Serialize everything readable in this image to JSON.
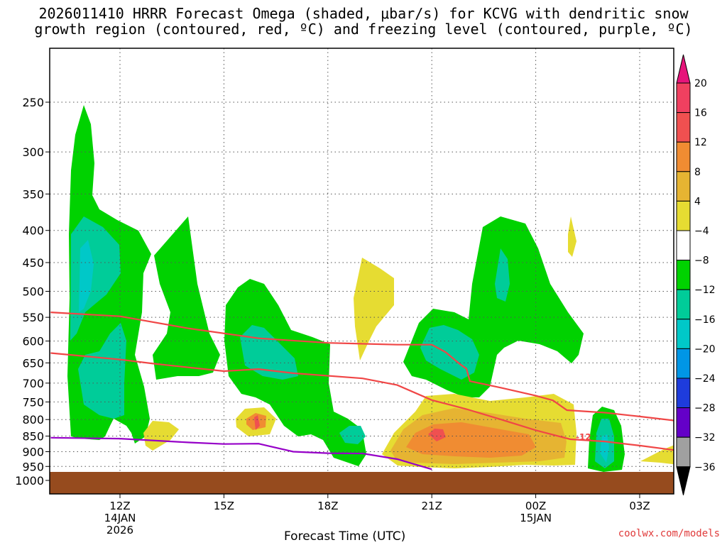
{
  "title_line1": "2026011410 HRRR Forecast Omega (shaded, μbar/s) for KCVG with dendritic snow",
  "title_line2": "growth region (contoured, red, ºC) and freezing level (contoured, purple, ºC)",
  "credit": "coolwx.com/models",
  "colors": {
    "green": "#00d200",
    "teal": "#00cc99",
    "cyan": "#00c8c8",
    "yellow": "#e6dc32",
    "gold": "#e6b432",
    "orange": "#f08c32",
    "red": "#f05050",
    "ground": "#964b1e",
    "snow_line": "#f04646",
    "freezing_line": "#9600c8"
  },
  "chart_data": {
    "type": "heatmap",
    "xlabel": "Forecast Time (UTC)",
    "ylabel": "",
    "x_range_hours": [
      10,
      28
    ],
    "y_range_hPa": [
      200,
      1000
    ],
    "y_ticks": [
      250,
      300,
      350,
      400,
      450,
      500,
      550,
      600,
      650,
      700,
      750,
      800,
      850,
      900,
      950,
      1000
    ],
    "x_ticks": [
      {
        "hour": 12,
        "label": "12Z",
        "sub1": "14JAN",
        "sub2": "2026"
      },
      {
        "hour": 15,
        "label": "15Z",
        "sub1": "",
        "sub2": ""
      },
      {
        "hour": 18,
        "label": "18Z",
        "sub1": "",
        "sub2": ""
      },
      {
        "hour": 21,
        "label": "21Z",
        "sub1": "",
        "sub2": ""
      },
      {
        "hour": 24,
        "label": "00Z",
        "sub1": "15JAN",
        "sub2": ""
      },
      {
        "hour": 27,
        "label": "03Z",
        "sub1": "",
        "sub2": ""
      }
    ],
    "grid": true,
    "colorbar": {
      "labels": [
        "20",
        "16",
        "12",
        "8",
        "4",
        "−4",
        "−8",
        "−12",
        "−16",
        "−20",
        "−24",
        "−28",
        "−32",
        "−36"
      ],
      "colors": [
        "#f04060",
        "#f05050",
        "#f08c32",
        "#e6b432",
        "#e6dc32",
        "#ffffff",
        "#00d200",
        "#00cc99",
        "#00c8c8",
        "#0096e6",
        "#1e3cdc",
        "#6400c8",
        "#a000c8",
        "#a0a0a0"
      ],
      "top_arrow_color": "#e6147a",
      "bottom_arrow_color": "#000000"
    },
    "contour_label": "-12",
    "snow_growth_upper": [
      [
        10,
        540
      ],
      [
        12,
        548
      ],
      [
        14,
        573
      ],
      [
        16,
        594
      ],
      [
        18,
        604
      ],
      [
        20,
        608
      ],
      [
        21,
        608
      ],
      [
        21.4,
        625
      ],
      [
        21.8,
        652
      ],
      [
        22.0,
        664
      ],
      [
        22.1,
        695
      ],
      [
        23,
        712
      ],
      [
        24,
        733
      ],
      [
        24.5,
        746
      ],
      [
        24.9,
        773
      ],
      [
        26,
        780
      ],
      [
        27,
        791
      ],
      [
        28,
        803
      ]
    ],
    "snow_growth_lower": [
      [
        10,
        627
      ],
      [
        12,
        642
      ],
      [
        13,
        652
      ],
      [
        15,
        670
      ],
      [
        16,
        665
      ],
      [
        17,
        675
      ],
      [
        19,
        688
      ],
      [
        20,
        705
      ],
      [
        21,
        745
      ],
      [
        22,
        770
      ],
      [
        23,
        800
      ],
      [
        24,
        832
      ],
      [
        25,
        860
      ],
      [
        26,
        867
      ],
      [
        27,
        880
      ],
      [
        28,
        895
      ]
    ],
    "freezing_level": [
      [
        10,
        855
      ],
      [
        12,
        858
      ],
      [
        14,
        870
      ],
      [
        15,
        875
      ],
      [
        16,
        874
      ],
      [
        17,
        900
      ],
      [
        18,
        905
      ],
      [
        19,
        906
      ],
      [
        20,
        925
      ],
      [
        21,
        960
      ]
    ]
  }
}
